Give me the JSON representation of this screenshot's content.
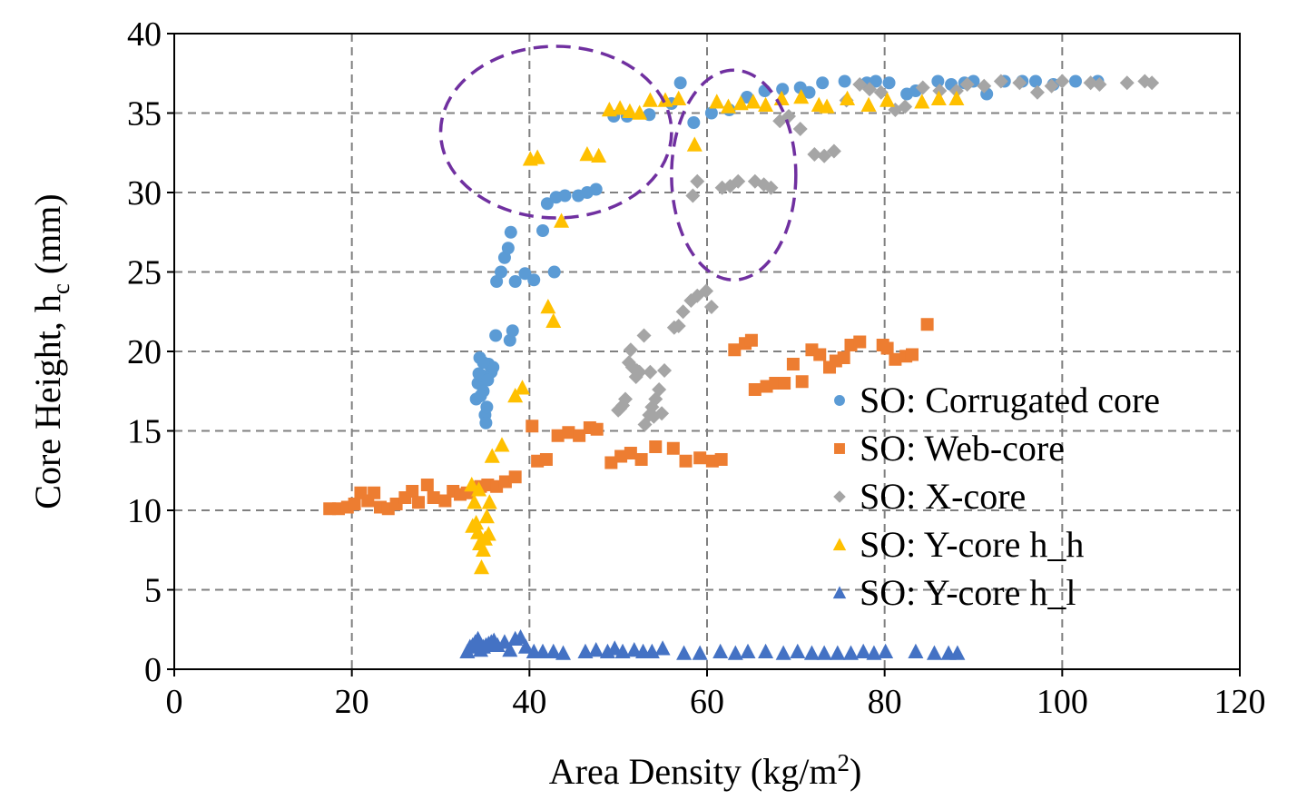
{
  "chart_data": {
    "type": "scatter",
    "title": "",
    "xlabel": "Area Density (kg/m",
    "xlabel_sup": "2",
    "xlabel_end": ")",
    "ylabel": "Core Height, h",
    "ylabel_sub": "c",
    "ylabel_end": " (mm)",
    "xlim": [
      0,
      120
    ],
    "ylim": [
      0,
      40
    ],
    "x_ticks": [
      0,
      20,
      40,
      60,
      80,
      100,
      120
    ],
    "y_ticks": [
      0,
      5,
      10,
      15,
      20,
      25,
      30,
      35,
      40
    ],
    "x_tick_labels": [
      "0",
      "20",
      "40",
      "60",
      "80",
      "100",
      "120"
    ],
    "y_tick_labels": [
      "0",
      "5",
      "10",
      "15",
      "20",
      "25",
      "30",
      "35",
      "40"
    ],
    "grid": true,
    "legend_position": "center-right",
    "annotations": [
      {
        "type": "dashed-ellipse",
        "cx": 43,
        "cy": 33.8,
        "rx": 13,
        "ry": 5.4,
        "color": "#7030a0"
      },
      {
        "type": "dashed-ellipse",
        "cx": 63,
        "cy": 31.1,
        "rx": 7,
        "ry": 6.6,
        "color": "#7030a0"
      }
    ],
    "series": [
      {
        "name": "SO: Corrugated core",
        "marker": "circle",
        "color": "#5b9bd5",
        "points": [
          [
            34,
            17
          ],
          [
            34.2,
            18
          ],
          [
            34.4,
            19.6
          ],
          [
            34.6,
            18.5
          ],
          [
            34.8,
            17.5
          ],
          [
            35,
            16
          ],
          [
            35.1,
            15.5
          ],
          [
            35.2,
            16.5
          ],
          [
            34.5,
            17.2
          ],
          [
            35.4,
            19.2
          ],
          [
            35.7,
            18.7
          ],
          [
            35.9,
            19
          ],
          [
            34.8,
            19.3
          ],
          [
            34.3,
            18.6
          ],
          [
            35.3,
            18.2
          ],
          [
            36.2,
            21
          ],
          [
            37.8,
            20.7
          ],
          [
            38.1,
            21.3
          ],
          [
            36.3,
            24.4
          ],
          [
            36.8,
            25
          ],
          [
            37.2,
            25.9
          ],
          [
            37.6,
            26.5
          ],
          [
            37.9,
            27.5
          ],
          [
            38.4,
            24.4
          ],
          [
            39.5,
            24.9
          ],
          [
            40.5,
            24.5
          ],
          [
            41.5,
            27.6
          ],
          [
            42.8,
            25
          ],
          [
            42,
            29.3
          ],
          [
            43,
            29.7
          ],
          [
            44,
            29.8
          ],
          [
            45.5,
            29.8
          ],
          [
            46.5,
            30
          ],
          [
            47.5,
            30.2
          ],
          [
            49.5,
            34.8
          ],
          [
            51,
            34.8
          ],
          [
            53.5,
            34.9
          ],
          [
            56,
            35.6
          ],
          [
            57,
            36.9
          ],
          [
            58.5,
            34.4
          ],
          [
            60.5,
            35
          ],
          [
            62.5,
            35.2
          ],
          [
            64.5,
            36
          ],
          [
            66.5,
            36.4
          ],
          [
            68.5,
            36.5
          ],
          [
            70.5,
            36.6
          ],
          [
            71.5,
            36.3
          ],
          [
            73,
            36.9
          ],
          [
            75.5,
            37
          ],
          [
            78,
            36.9
          ],
          [
            79,
            37
          ],
          [
            80.5,
            36.9
          ],
          [
            82.5,
            36.2
          ],
          [
            83.5,
            36.4
          ],
          [
            86,
            37
          ],
          [
            87.5,
            36.8
          ],
          [
            89,
            36.9
          ],
          [
            90,
            37
          ],
          [
            91.5,
            36.2
          ],
          [
            93.5,
            37
          ],
          [
            95.5,
            37
          ],
          [
            97,
            37
          ],
          [
            99,
            36.8
          ],
          [
            101.5,
            37
          ],
          [
            104,
            37
          ]
        ]
      },
      {
        "name": "SO: Web-core",
        "marker": "square",
        "color": "#ed7d31",
        "points": [
          [
            17.5,
            10.1
          ],
          [
            18.5,
            10.1
          ],
          [
            19.5,
            10.2
          ],
          [
            20.3,
            10.4
          ],
          [
            21,
            11.1
          ],
          [
            21.8,
            10.6
          ],
          [
            22.5,
            11.1
          ],
          [
            23.2,
            10.2
          ],
          [
            24.1,
            10.1
          ],
          [
            25,
            10.4
          ],
          [
            26,
            10.8
          ],
          [
            26.8,
            11.2
          ],
          [
            27.5,
            10.5
          ],
          [
            28.5,
            11.6
          ],
          [
            29.2,
            10.8
          ],
          [
            30.5,
            10.6
          ],
          [
            31.4,
            11.2
          ],
          [
            32.2,
            11
          ],
          [
            33,
            11.1
          ],
          [
            34.5,
            11.5
          ],
          [
            35.3,
            11.6
          ],
          [
            36.3,
            11.5
          ],
          [
            37.3,
            11.8
          ],
          [
            38.4,
            12.1
          ],
          [
            40.3,
            15.3
          ],
          [
            40.9,
            13.1
          ],
          [
            41.9,
            13.2
          ],
          [
            43.2,
            14.7
          ],
          [
            44.4,
            14.9
          ],
          [
            45.6,
            14.7
          ],
          [
            46.8,
            15.2
          ],
          [
            47.6,
            15.1
          ],
          [
            49.2,
            13
          ],
          [
            50.3,
            13.4
          ],
          [
            51.4,
            13.6
          ],
          [
            52.6,
            13.2
          ],
          [
            54.2,
            14
          ],
          [
            56.2,
            13.9
          ],
          [
            57.6,
            13.1
          ],
          [
            59.2,
            13.3
          ],
          [
            60.6,
            13.1
          ],
          [
            61.6,
            13.2
          ],
          [
            65.4,
            17.6
          ],
          [
            66.7,
            17.8
          ],
          [
            67.7,
            18
          ],
          [
            68.7,
            18
          ],
          [
            69.7,
            19.2
          ],
          [
            70.7,
            18.1
          ],
          [
            63.1,
            20.1
          ],
          [
            64.3,
            20.5
          ],
          [
            65,
            20.7
          ],
          [
            71.8,
            20.1
          ],
          [
            72.7,
            19.8
          ],
          [
            73.8,
            19
          ],
          [
            74.5,
            19.4
          ],
          [
            75.4,
            19.6
          ],
          [
            76.2,
            20.4
          ],
          [
            77.2,
            20.6
          ],
          [
            79.8,
            20.4
          ],
          [
            80.3,
            20.2
          ],
          [
            81.2,
            19.5
          ],
          [
            82.4,
            19.7
          ],
          [
            83.1,
            19.8
          ],
          [
            84.8,
            21.7
          ]
        ]
      },
      {
        "name": "SO: X-core",
        "marker": "diamond",
        "color": "#a5a5a5",
        "points": [
          [
            50,
            16.3
          ],
          [
            50.5,
            16.6
          ],
          [
            50.8,
            17
          ],
          [
            50.2,
            16.4
          ],
          [
            51.2,
            19.3
          ],
          [
            51.6,
            19
          ],
          [
            52.1,
            18.8
          ],
          [
            51.4,
            20.1
          ],
          [
            52,
            18.4
          ],
          [
            52.4,
            18.7
          ],
          [
            52.9,
            21
          ],
          [
            53,
            15.4
          ],
          [
            53.5,
            16
          ],
          [
            53.8,
            16.5
          ],
          [
            54.2,
            17
          ],
          [
            54.6,
            17.6
          ],
          [
            54.9,
            16.1
          ],
          [
            55.2,
            18.8
          ],
          [
            53.6,
            18.7
          ],
          [
            54,
            15.9
          ],
          [
            56.3,
            21.5
          ],
          [
            56.8,
            21.6
          ],
          [
            57.3,
            22.5
          ],
          [
            58.2,
            23.2
          ],
          [
            58.9,
            23.5
          ],
          [
            59.9,
            23.8
          ],
          [
            60.5,
            22.8
          ],
          [
            58.4,
            29.8
          ],
          [
            58.9,
            30.7
          ],
          [
            61.7,
            30.3
          ],
          [
            62.6,
            30.4
          ],
          [
            63.5,
            30.7
          ],
          [
            65.4,
            30.7
          ],
          [
            66.4,
            30.5
          ],
          [
            67.2,
            30.3
          ],
          [
            68.2,
            34.5
          ],
          [
            69.2,
            34.8
          ],
          [
            70.5,
            34
          ],
          [
            72.1,
            32.4
          ],
          [
            73.2,
            32.3
          ],
          [
            74.3,
            32.6
          ],
          [
            75.7,
            35.8
          ],
          [
            77.2,
            36.8
          ],
          [
            78.3,
            36.5
          ],
          [
            79.6,
            36.3
          ],
          [
            81.2,
            35.2
          ],
          [
            82.3,
            35.4
          ],
          [
            84.3,
            36.6
          ],
          [
            86.2,
            36.4
          ],
          [
            88.1,
            36.4
          ],
          [
            89.3,
            36.8
          ],
          [
            91.2,
            36.7
          ],
          [
            93.1,
            37
          ],
          [
            95.2,
            36.9
          ],
          [
            97.2,
            36.3
          ],
          [
            98.8,
            36.7
          ],
          [
            100,
            37
          ],
          [
            103.2,
            36.9
          ],
          [
            104.2,
            36.8
          ],
          [
            107.3,
            36.9
          ],
          [
            109.3,
            37
          ],
          [
            110.1,
            36.9
          ]
        ]
      },
      {
        "name": "SO: Y-core h_h",
        "marker": "triangle",
        "color": "#ffc000",
        "points": [
          [
            33.5,
            11.6
          ],
          [
            33.8,
            10.5
          ],
          [
            34,
            9.2
          ],
          [
            34.2,
            8.6
          ],
          [
            34.4,
            7.9
          ],
          [
            34.6,
            6.4
          ],
          [
            34.8,
            7.5
          ],
          [
            35,
            8.2
          ],
          [
            35.2,
            9.6
          ],
          [
            34.3,
            11.3
          ],
          [
            35.5,
            10.5
          ],
          [
            35.4,
            8.5
          ],
          [
            33.6,
            9
          ],
          [
            35.8,
            13.4
          ],
          [
            36.9,
            14.1
          ],
          [
            38.4,
            17.2
          ],
          [
            39.2,
            17.7
          ],
          [
            42.1,
            22.8
          ],
          [
            42.7,
            21.9
          ],
          [
            43.6,
            28.2
          ],
          [
            40.1,
            32.1
          ],
          [
            40.9,
            32.2
          ],
          [
            46.5,
            32.4
          ],
          [
            47.8,
            32.3
          ],
          [
            49,
            35.2
          ],
          [
            50.2,
            35.3
          ],
          [
            51.3,
            35.1
          ],
          [
            52.4,
            35
          ],
          [
            53.6,
            35.8
          ],
          [
            55.3,
            35.8
          ],
          [
            56.8,
            35.9
          ],
          [
            58.6,
            33
          ],
          [
            61.1,
            35.7
          ],
          [
            62.4,
            35.4
          ],
          [
            63.8,
            35.6
          ],
          [
            65.2,
            35.7
          ],
          [
            66.6,
            35.5
          ],
          [
            68.4,
            35.9
          ],
          [
            70.6,
            36
          ],
          [
            72.6,
            35.5
          ],
          [
            73.5,
            35.4
          ],
          [
            75.8,
            35.9
          ],
          [
            78.2,
            35.5
          ],
          [
            80.3,
            35.8
          ],
          [
            84.2,
            35.7
          ],
          [
            86.1,
            35.9
          ],
          [
            88.1,
            35.9
          ]
        ]
      },
      {
        "name": "SO: Y-core h_l",
        "marker": "triangle",
        "color": "#4472c4",
        "points": [
          [
            33,
            1.1
          ],
          [
            33.3,
            1.4
          ],
          [
            33.6,
            1.5
          ],
          [
            33.9,
            1.7
          ],
          [
            34.2,
            1.9
          ],
          [
            34.5,
            1.2
          ],
          [
            34.8,
            1.4
          ],
          [
            35.1,
            1.5
          ],
          [
            35.4,
            1.6
          ],
          [
            35.7,
            1.7
          ],
          [
            36,
            1.8
          ],
          [
            36.4,
            1.5
          ],
          [
            37.2,
            1.7
          ],
          [
            37.8,
            1.2
          ],
          [
            38.4,
            1.9
          ],
          [
            39,
            2
          ],
          [
            39.6,
            1.4
          ],
          [
            40.5,
            1.1
          ],
          [
            41.5,
            1.1
          ],
          [
            42.7,
            1.1
          ],
          [
            43.8,
            1
          ],
          [
            46.3,
            1.1
          ],
          [
            47.5,
            1.2
          ],
          [
            48.8,
            1.1
          ],
          [
            49.6,
            1.3
          ],
          [
            50.5,
            1.1
          ],
          [
            51.8,
            1.2
          ],
          [
            52.8,
            1.1
          ],
          [
            53.8,
            1.1
          ],
          [
            55,
            1.3
          ],
          [
            57.4,
            1
          ],
          [
            59.2,
            1
          ],
          [
            61.5,
            1.1
          ],
          [
            63.2,
            1
          ],
          [
            64.6,
            1.1
          ],
          [
            66.6,
            1.1
          ],
          [
            68.6,
            1
          ],
          [
            70.2,
            1.1
          ],
          [
            71.8,
            1
          ],
          [
            73.2,
            1
          ],
          [
            74.7,
            1
          ],
          [
            76.2,
            1
          ],
          [
            77.6,
            1.1
          ],
          [
            78.8,
            1
          ],
          [
            80.1,
            1.1
          ],
          [
            83.5,
            1.1
          ],
          [
            85.6,
            1
          ],
          [
            87.2,
            1
          ],
          [
            88.2,
            1
          ]
        ]
      }
    ]
  }
}
